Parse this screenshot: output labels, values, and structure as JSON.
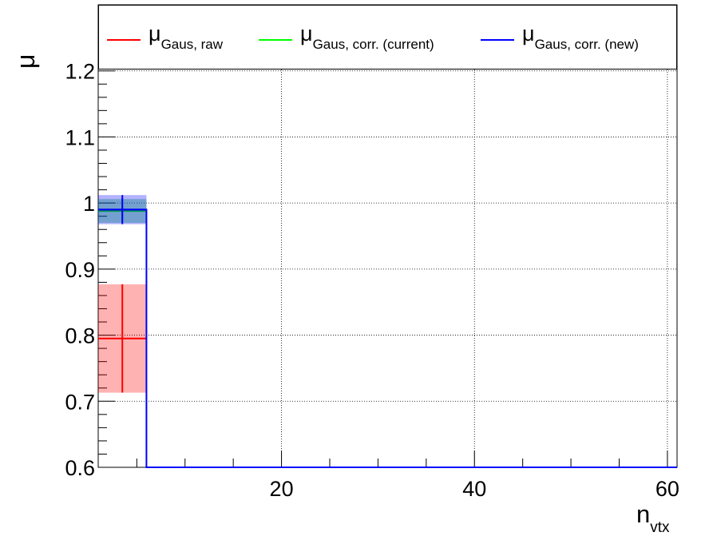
{
  "chart_data": {
    "type": "line",
    "xlabel_main": "n",
    "xlabel_sub": "vtx",
    "ylabel": "μ",
    "xlim": [
      1,
      61
    ],
    "ylim": [
      0.6,
      1.3
    ],
    "xticks": [
      20,
      40,
      60
    ],
    "yticks": [
      0.6,
      0.7,
      0.8,
      0.9,
      1,
      1.1,
      1.2
    ],
    "ytick_labels": [
      "0.6",
      "0.7",
      "0.8",
      "0.9",
      "1",
      "1.1",
      "1.2"
    ],
    "grid": true,
    "legend_position": "top",
    "bin_edges": [
      1,
      6
    ],
    "series": [
      {
        "name": "μGaus, raw",
        "sym": "μ",
        "sub": "Gaus, raw",
        "color": "#ff0000",
        "band_color": "rgba(255,0,0,0.3)",
        "x": [
          3.5
        ],
        "y": [
          0.795
        ],
        "xerr": [
          2.5
        ],
        "yerr": [
          0.082
        ]
      },
      {
        "name": "μGaus, corr. (current)",
        "sym": "μ",
        "sub": "Gaus, corr. (current)",
        "color": "#00dd00",
        "band_color": "rgba(0,180,60,0.35)",
        "x": [
          3.5
        ],
        "y": [
          0.988
        ],
        "xerr": [
          2.5
        ],
        "yerr": [
          0.018
        ]
      },
      {
        "name": "μGaus, corr. (new)",
        "sym": "μ",
        "sub": "Gaus, corr. (new)",
        "color": "#0000ff",
        "band_color": "rgba(0,0,255,0.3)",
        "x": [
          3.5
        ],
        "y": [
          0.99
        ],
        "xerr": [
          2.5
        ],
        "yerr": [
          0.022
        ]
      }
    ]
  }
}
